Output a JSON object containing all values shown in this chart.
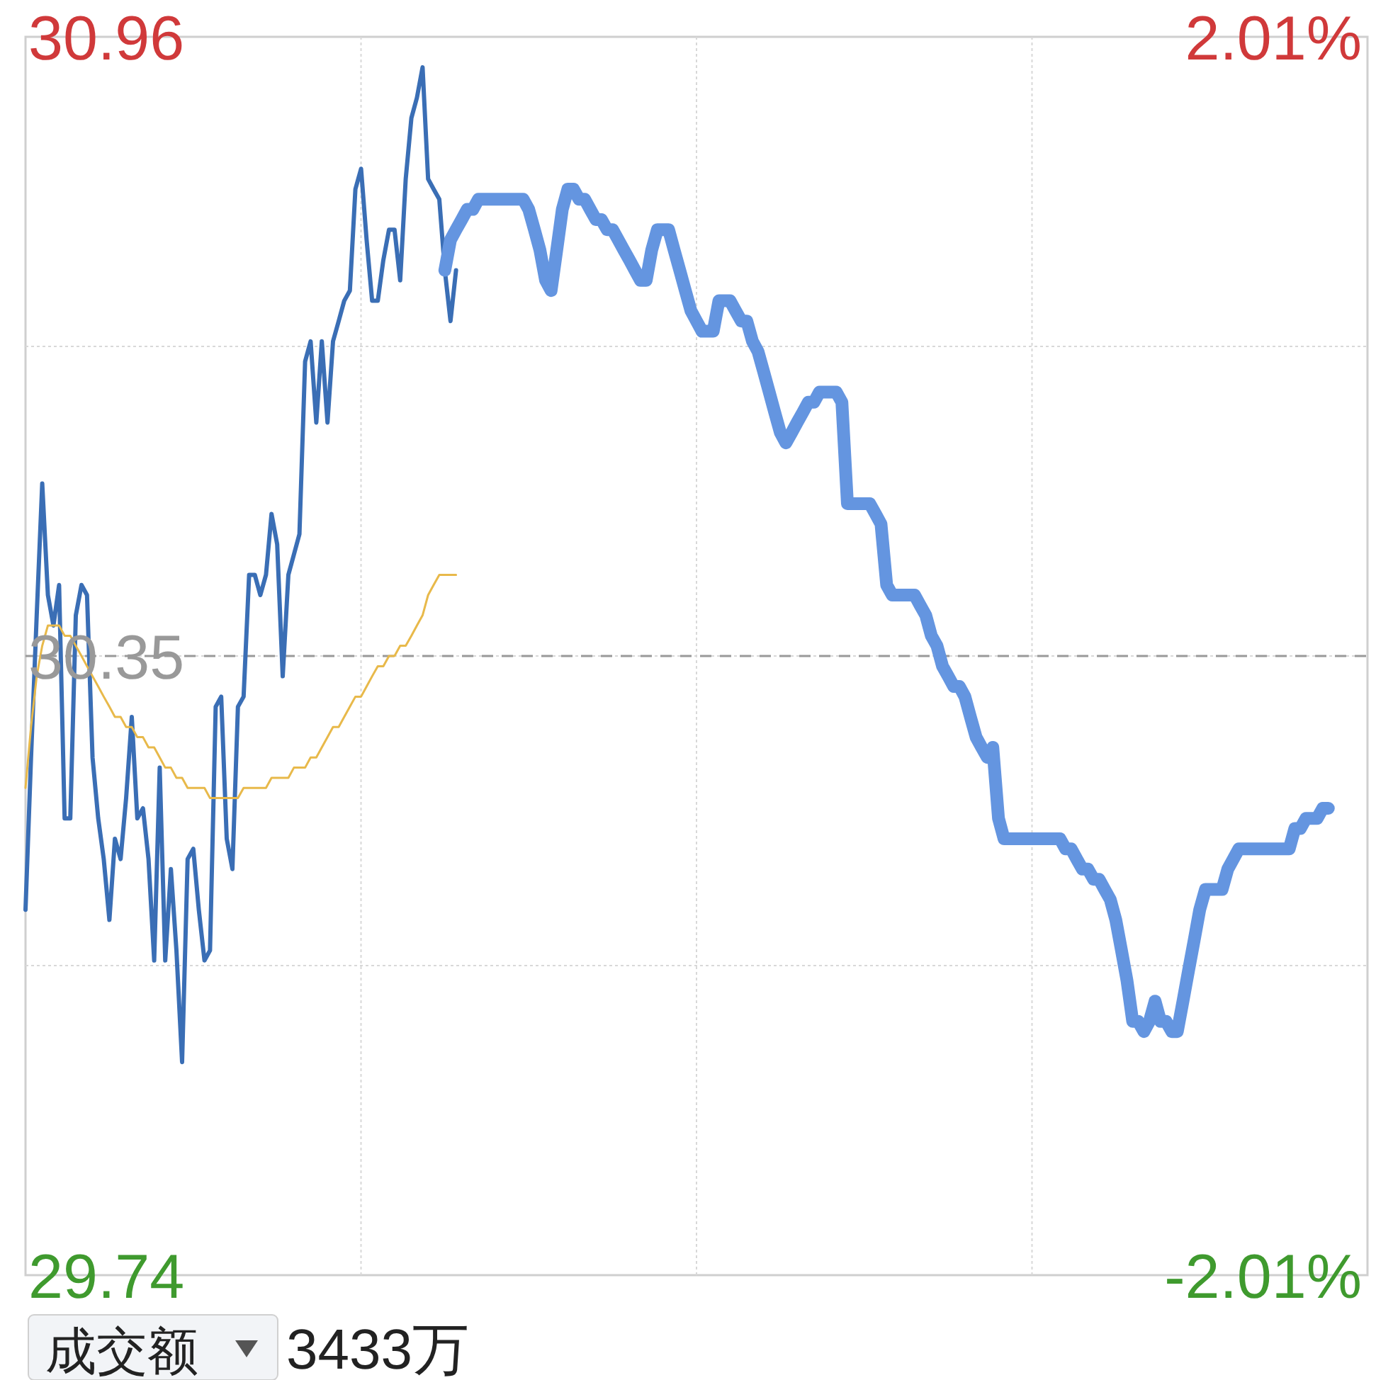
{
  "chart_data": {
    "type": "line",
    "categories": [
      null,
      null,
      null,
      null,
      null,
      null,
      null,
      null,
      null,
      null,
      null,
      null,
      null,
      null,
      null,
      null,
      null,
      null,
      null,
      null,
      null,
      null,
      null,
      null,
      null,
      null,
      null,
      null,
      null,
      null,
      null,
      null,
      null,
      null,
      null,
      null,
      null,
      null,
      null,
      null,
      null,
      null,
      null,
      null,
      null,
      null,
      null,
      null,
      null,
      null,
      null,
      null,
      null,
      null,
      null,
      null,
      null,
      null,
      null,
      null,
      null,
      null,
      null,
      null,
      null,
      null,
      null,
      null,
      null,
      null,
      null,
      null,
      null,
      null,
      null,
      null,
      null,
      null,
      null,
      null,
      null,
      null,
      null,
      null,
      null,
      null,
      null,
      null,
      null,
      null,
      null,
      null,
      null,
      null,
      null,
      null,
      null,
      null,
      null,
      null,
      null,
      null,
      null,
      null,
      null,
      null,
      null,
      null,
      null,
      null,
      null,
      null,
      null,
      null,
      null,
      null,
      null,
      null,
      null,
      null,
      null,
      null,
      null,
      null,
      null,
      null,
      null,
      null,
      null,
      null,
      null,
      null,
      null,
      null,
      null,
      null,
      null,
      null,
      null,
      null,
      null,
      null,
      null,
      null,
      null,
      null,
      null,
      null,
      null,
      null,
      null,
      null,
      null,
      null,
      null,
      null,
      null,
      null,
      null,
      null,
      null,
      null,
      null,
      null,
      null,
      null,
      null,
      null,
      null,
      null,
      null,
      null,
      null,
      null,
      null,
      null,
      null,
      null,
      null,
      null,
      null,
      null,
      null,
      null,
      null,
      null,
      null,
      null,
      null,
      null,
      null,
      null,
      null,
      null,
      null,
      null,
      null,
      null,
      null,
      null,
      null,
      null,
      null,
      null,
      null,
      null,
      null,
      null,
      null,
      null,
      null,
      null,
      null,
      null,
      null,
      null,
      null,
      null,
      null,
      null,
      null,
      null,
      null,
      null,
      null,
      null,
      null,
      null,
      null,
      null,
      null,
      null,
      null,
      null,
      null,
      null,
      null,
      null,
      null,
      null,
      null
    ],
    "ylim": [
      29.74,
      30.96
    ],
    "yticks": [
      30.96,
      {
        "value": 30.655,
        "label": null
      },
      30.35,
      {
        "value": 30.045,
        "label": null
      },
      29.74
    ],
    "y2lim": [
      -2.01,
      2.01
    ],
    "y2ticks": [
      {
        "value": 2.01,
        "label": "2.01%"
      },
      {
        "value": -2.01,
        "label": "-2.01%"
      }
    ],
    "grid": true,
    "legend": false,
    "marker": "none",
    "ref_lines": [
      {
        "axis": "y",
        "value": 30.35,
        "color": "#999999",
        "line_style": "dashed"
      }
    ],
    "series": [
      {
        "color": "#3a6eb5",
        "values": [
          30.1,
          30.25,
          30.39,
          30.52,
          30.41,
          30.38,
          30.42,
          30.19,
          30.19,
          30.39,
          30.42,
          30.41,
          30.25,
          30.19,
          30.15,
          30.09,
          30.17,
          30.15,
          30.21,
          30.29,
          30.19,
          30.2,
          30.15,
          30.05,
          30.24,
          30.05,
          30.14,
          30.06,
          29.95,
          30.15,
          30.16,
          30.1,
          30.05,
          30.06,
          30.3,
          30.31,
          30.17,
          30.14,
          30.3,
          30.31,
          30.43,
          30.43,
          30.41,
          30.43,
          30.49,
          30.46,
          30.33,
          30.43,
          30.45,
          30.47,
          30.64,
          30.66,
          30.58,
          30.66,
          30.58,
          30.66,
          30.68,
          30.7,
          30.71,
          30.81,
          30.83,
          30.76,
          30.7,
          30.7,
          30.74,
          30.77,
          30.77,
          30.72,
          30.82,
          30.88,
          30.9,
          30.93,
          30.82,
          30.81,
          30.8,
          30.73,
          30.68,
          30.73,
          null,
          null,
          null,
          null,
          null,
          null,
          null,
          null,
          null,
          null,
          null,
          null,
          null,
          null,
          null,
          null,
          null,
          null,
          null,
          null,
          null,
          null,
          null,
          null,
          null,
          null,
          null,
          null,
          null,
          null,
          null,
          null,
          null,
          null,
          null,
          null,
          null,
          null,
          null,
          null,
          null,
          null,
          null,
          null,
          null,
          null,
          null,
          null,
          null,
          null,
          null,
          null,
          null,
          null,
          null,
          null,
          null,
          null,
          null,
          null,
          null,
          null,
          null,
          null,
          null,
          null,
          null,
          null,
          null,
          null,
          null,
          null,
          null,
          null,
          null,
          null,
          null,
          null,
          null,
          null,
          null,
          null,
          null,
          null,
          null,
          null,
          null,
          null,
          null,
          null,
          null,
          null,
          null,
          null,
          null,
          null,
          null,
          null,
          null,
          null,
          null,
          null,
          null,
          null,
          null,
          null,
          null,
          null,
          null,
          null,
          null,
          null,
          null,
          null,
          null,
          null,
          null,
          null,
          null,
          null,
          null,
          null,
          null,
          null,
          null,
          null,
          null,
          null,
          null,
          null,
          null,
          null,
          null,
          null,
          null,
          null,
          null,
          null,
          null,
          null,
          null,
          null,
          null,
          null,
          null,
          null,
          null,
          null,
          null,
          null,
          null,
          null,
          null,
          null,
          null,
          null,
          null,
          null,
          null,
          null,
          null,
          null,
          null
        ]
      },
      {
        "color": "#e8b94a",
        "values": [
          30.22,
          30.28,
          30.33,
          30.36,
          30.38,
          30.38,
          30.38,
          30.37,
          30.37,
          30.36,
          30.35,
          30.34,
          30.33,
          30.32,
          30.31,
          30.3,
          30.29,
          30.29,
          30.28,
          30.28,
          30.27,
          30.27,
          30.26,
          30.26,
          30.25,
          30.24,
          30.24,
          30.23,
          30.23,
          30.22,
          30.22,
          30.22,
          30.22,
          30.21,
          30.21,
          30.21,
          30.21,
          30.21,
          30.21,
          30.22,
          30.22,
          30.22,
          30.22,
          30.22,
          30.23,
          30.23,
          30.23,
          30.23,
          30.24,
          30.24,
          30.24,
          30.25,
          30.25,
          30.26,
          30.27,
          30.28,
          30.28,
          30.29,
          30.3,
          30.31,
          30.31,
          30.32,
          30.33,
          30.34,
          30.34,
          30.35,
          30.35,
          30.36,
          30.36,
          30.37,
          30.38,
          30.39,
          30.41,
          30.42,
          30.43,
          30.43,
          30.43,
          30.43,
          null,
          null,
          null,
          null,
          null,
          null,
          null,
          null,
          null,
          null,
          null,
          null,
          null,
          null,
          null,
          null,
          null,
          null,
          null,
          null,
          null,
          null,
          null,
          null,
          null,
          null,
          null,
          null,
          null,
          null,
          null,
          null,
          null,
          null,
          null,
          null,
          null,
          null,
          null,
          null,
          null,
          null,
          null,
          null,
          null,
          null,
          null,
          null,
          null,
          null,
          null,
          null,
          null,
          null,
          null,
          null,
          null,
          null,
          null,
          null,
          null,
          null,
          null,
          null,
          null,
          null,
          null,
          null,
          null,
          null,
          null,
          null,
          null,
          null,
          null,
          null,
          null,
          null,
          null,
          null,
          null,
          null,
          null,
          null,
          null,
          null,
          null,
          null,
          null,
          null,
          null,
          null,
          null,
          null,
          null,
          null,
          null,
          null,
          null,
          null,
          null,
          null,
          null,
          null,
          null,
          null,
          null,
          null,
          null,
          null,
          null,
          null,
          null,
          null,
          null,
          null,
          null,
          null,
          null,
          null,
          null,
          null,
          null,
          null,
          null,
          null,
          null,
          null,
          null,
          null,
          null,
          null,
          null,
          null,
          null,
          null,
          null,
          null,
          null,
          null,
          null,
          null,
          null,
          null,
          null,
          null,
          null,
          null,
          null,
          null,
          null,
          null,
          null,
          null,
          null,
          null,
          null,
          null,
          null,
          null,
          null,
          null,
          null
        ]
      },
      {
        "color": "#6495e0",
        "values": [
          null,
          null,
          null,
          null,
          null,
          null,
          null,
          null,
          null,
          null,
          null,
          null,
          null,
          null,
          null,
          null,
          null,
          null,
          null,
          null,
          null,
          null,
          null,
          null,
          null,
          null,
          null,
          null,
          null,
          null,
          null,
          null,
          null,
          null,
          null,
          null,
          null,
          null,
          null,
          null,
          null,
          null,
          null,
          null,
          null,
          null,
          null,
          null,
          null,
          null,
          null,
          null,
          null,
          null,
          null,
          null,
          null,
          null,
          null,
          null,
          null,
          null,
          null,
          null,
          null,
          null,
          null,
          null,
          null,
          null,
          null,
          null,
          null,
          null,
          null,
          30.73,
          30.76,
          30.77,
          30.78,
          30.79,
          30.79,
          30.8,
          30.8,
          30.8,
          30.8,
          30.8,
          30.8,
          30.8,
          30.8,
          30.8,
          30.79,
          30.77,
          30.75,
          30.72,
          30.71,
          30.75,
          30.79,
          30.81,
          30.81,
          30.8,
          30.8,
          30.79,
          30.78,
          30.78,
          30.77,
          30.77,
          30.76,
          30.75,
          30.74,
          30.73,
          30.72,
          30.72,
          30.75,
          30.77,
          30.77,
          30.77,
          30.75,
          30.73,
          30.71,
          30.69,
          30.68,
          30.67,
          30.67,
          30.67,
          30.7,
          30.7,
          30.7,
          30.69,
          30.68,
          30.68,
          30.66,
          30.65,
          30.63,
          30.61,
          30.59,
          30.57,
          30.56,
          30.57,
          30.58,
          30.59,
          30.6,
          30.6,
          30.61,
          30.61,
          30.61,
          30.61,
          30.6,
          30.5,
          30.5,
          30.5,
          30.5,
          30.5,
          30.49,
          30.48,
          30.42,
          30.41,
          30.41,
          30.41,
          30.41,
          30.41,
          30.4,
          30.39,
          30.37,
          30.36,
          30.34,
          30.33,
          30.32,
          30.32,
          30.31,
          30.29,
          30.27,
          30.26,
          30.25,
          30.26,
          30.19,
          30.17,
          30.17,
          30.17,
          30.17,
          30.17,
          30.17,
          30.17,
          30.17,
          30.17,
          30.17,
          30.17,
          30.16,
          30.16,
          30.15,
          30.14,
          30.14,
          30.13,
          30.13,
          30.12,
          30.11,
          30.09,
          30.06,
          30.03,
          29.99,
          29.99,
          29.98,
          29.99,
          30.01,
          29.99,
          29.99,
          29.98,
          29.98,
          30.01,
          30.04,
          30.07,
          30.1,
          30.12,
          30.12,
          30.12,
          30.12,
          30.14,
          30.15,
          30.16,
          30.16,
          30.16,
          30.16,
          30.16,
          30.16,
          30.16,
          30.16,
          30.16,
          30.16,
          30.18,
          30.18,
          30.19,
          30.19,
          30.19,
          30.2,
          30.2,
          null,
          null,
          null,
          null,
          null,
          null,
          null
        ]
      }
    ],
    "annotations": [
      "成交额",
      "3433万"
    ]
  }
}
